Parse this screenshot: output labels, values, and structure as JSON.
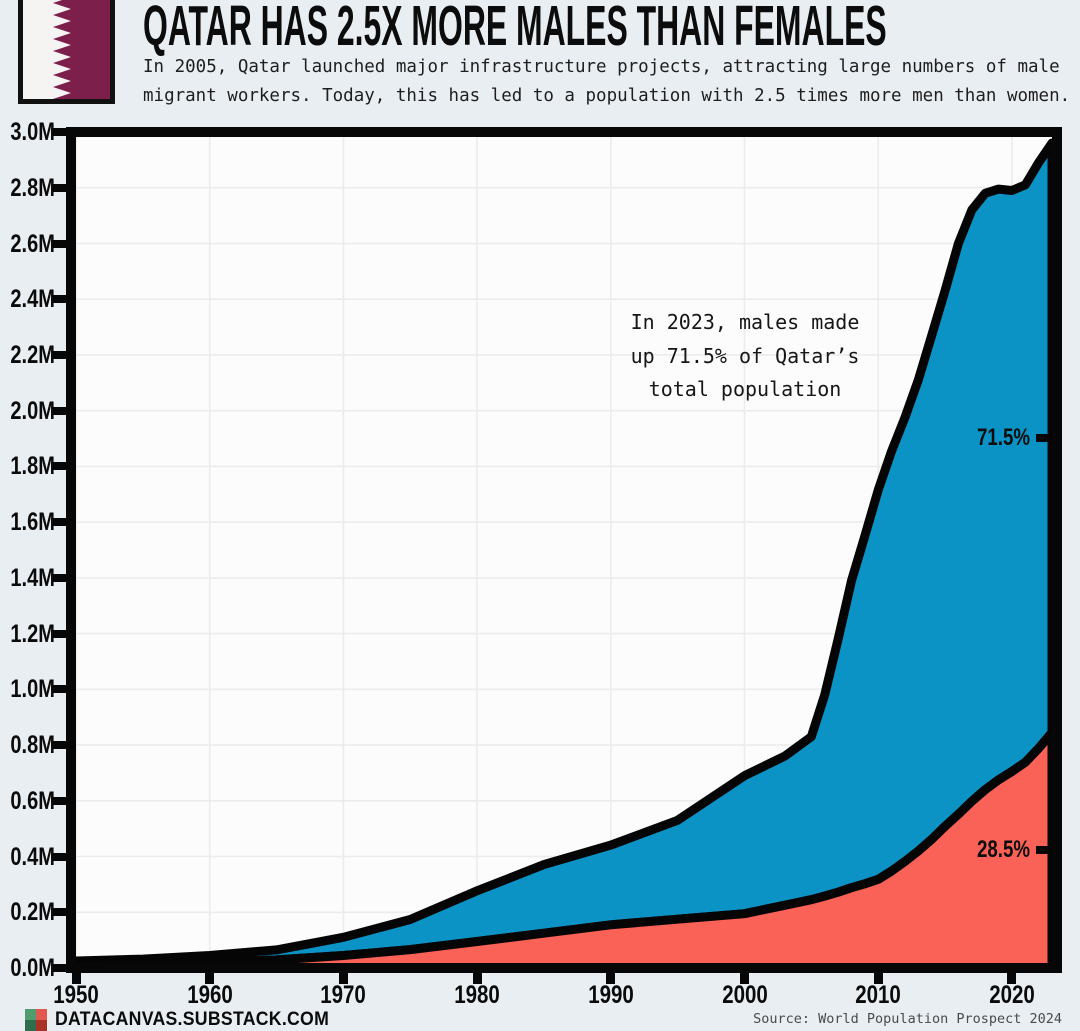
{
  "header": {
    "title": "QATAR HAS 2.5X MORE MALES THAN FEMALES",
    "subtitle_line1": "In 2005, Qatar launched major infrastructure projects, attracting large numbers of male",
    "subtitle_line2": "migrant workers. Today, this has led to a population with 2.5 times more men than women.",
    "flag_maroon": "#7c1f4a"
  },
  "chart_data": {
    "type": "area",
    "stacked": true,
    "unit": "millions of people",
    "x_range": [
      1950,
      2023
    ],
    "y_range": [
      0,
      3.0
    ],
    "x": [
      1950,
      1955,
      1960,
      1965,
      1970,
      1975,
      1980,
      1985,
      1990,
      1995,
      2000,
      2003,
      2005,
      2006,
      2007,
      2008,
      2009,
      2010,
      2011,
      2012,
      2013,
      2014,
      2015,
      2016,
      2017,
      2018,
      2019,
      2020,
      2021,
      2022,
      2023
    ],
    "series": [
      {
        "name": "Males",
        "color": "#0b93c5",
        "values": [
          0.014,
          0.018,
          0.025,
          0.036,
          0.065,
          0.108,
          0.182,
          0.246,
          0.286,
          0.355,
          0.495,
          0.535,
          0.585,
          0.722,
          0.908,
          1.102,
          1.248,
          1.397,
          1.507,
          1.593,
          1.69,
          1.808,
          1.922,
          2.048,
          2.122,
          2.14,
          2.12,
          2.085,
          2.072,
          2.102,
          2.115
        ],
        "share_2023_label": "71.5%"
      },
      {
        "name": "Females",
        "color": "#fa6157",
        "values": [
          0.011,
          0.014,
          0.02,
          0.029,
          0.045,
          0.066,
          0.095,
          0.125,
          0.155,
          0.175,
          0.195,
          0.225,
          0.245,
          0.258,
          0.272,
          0.288,
          0.302,
          0.318,
          0.348,
          0.382,
          0.42,
          0.462,
          0.508,
          0.552,
          0.598,
          0.64,
          0.675,
          0.705,
          0.738,
          0.788,
          0.845
        ],
        "share_2023_label": "28.5%"
      }
    ],
    "x_ticks": [
      1950,
      1960,
      1970,
      1980,
      1990,
      2000,
      2010,
      2020
    ],
    "y_tick_values": [
      0,
      0.2,
      0.4,
      0.6,
      0.8,
      1.0,
      1.2,
      1.4,
      1.6,
      1.8,
      2.0,
      2.2,
      2.4,
      2.6,
      2.8,
      3.0
    ],
    "y_tick_labels": [
      "0.0M",
      "0.2M",
      "0.4M",
      "0.6M",
      "0.8M",
      "1.0M",
      "1.2M",
      "1.4M",
      "1.6M",
      "1.8M",
      "2.0M",
      "2.2M",
      "2.4M",
      "2.6M",
      "2.8M",
      "3.0M"
    ],
    "grid": true,
    "legend": "none",
    "annotation": {
      "line1": "In 2023, males made",
      "line2": "up 71.5% of Qatar’s",
      "line3": "total population"
    },
    "stroke_color": "#050505",
    "male_share_label": "71.5%",
    "female_share_label": "28.5%"
  },
  "footer": {
    "site": "DATACANVAS.SUBSTACK.COM",
    "source": "Source: World Population Prospect 2024",
    "logo_colors": [
      "#4f9d6e",
      "#e2574e",
      "#2e6e4e",
      "#a93226"
    ]
  }
}
